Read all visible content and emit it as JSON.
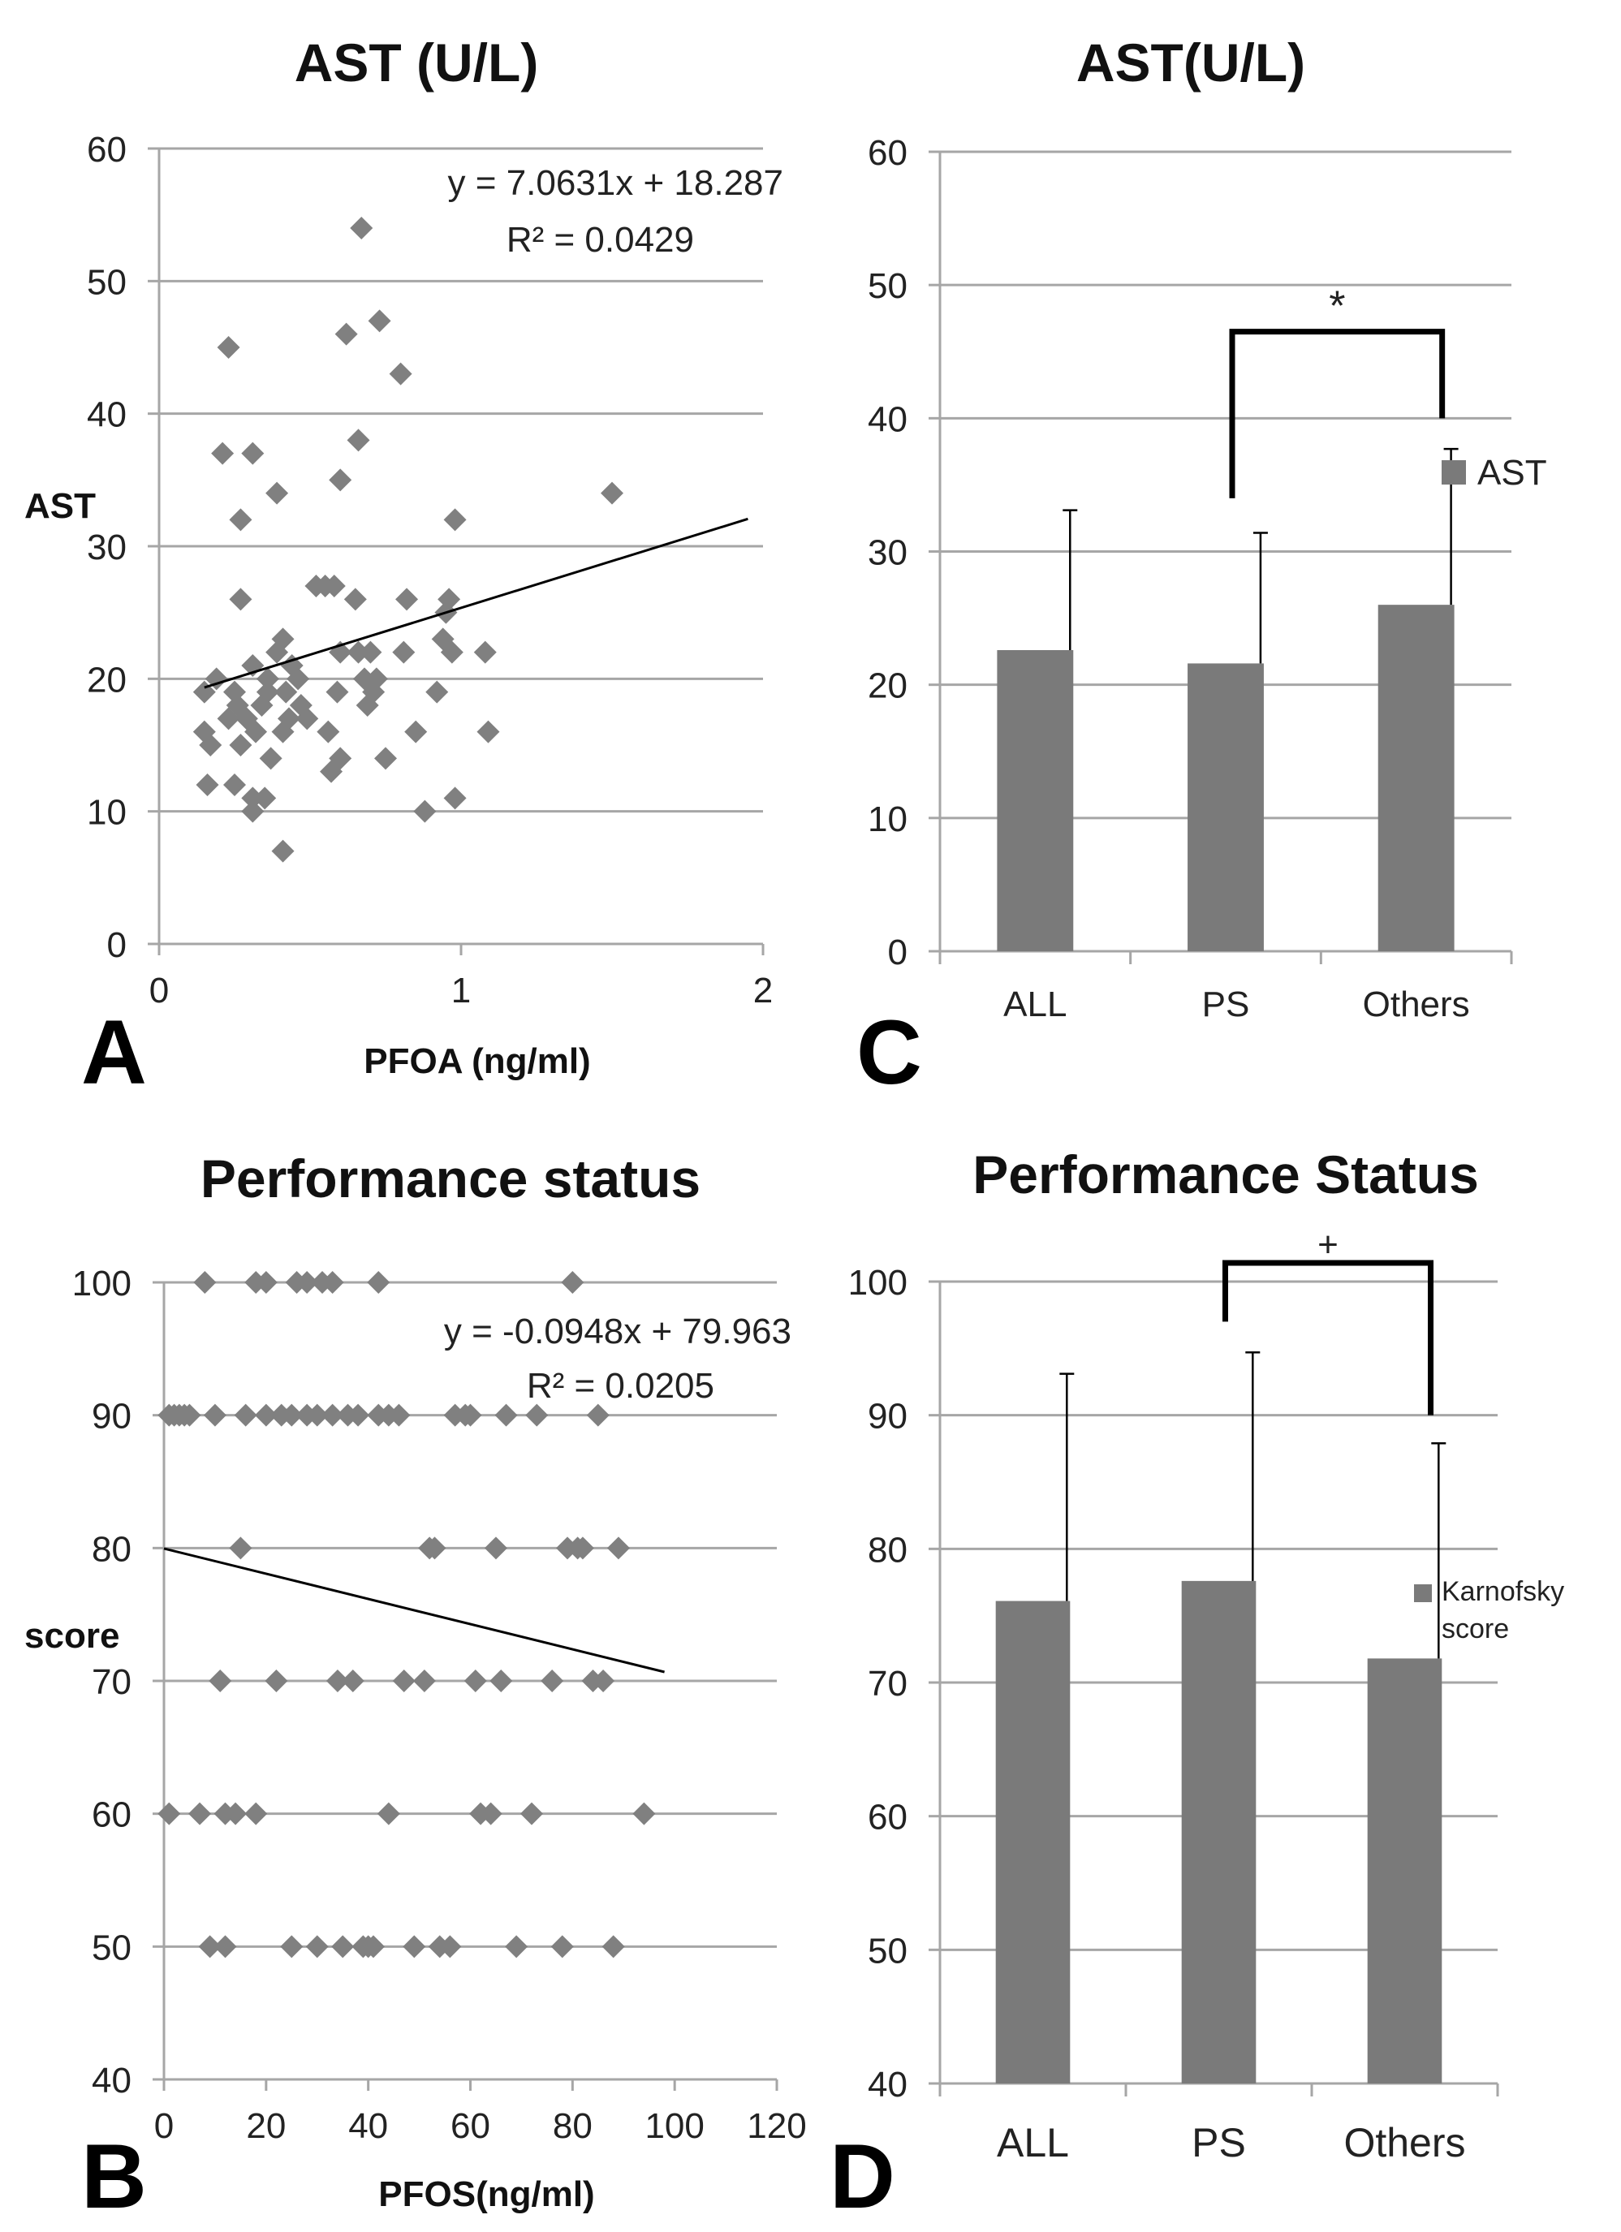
{
  "chart_data": [
    {
      "panel": "A",
      "type": "scatter",
      "title": "AST (U/L)",
      "xlabel": "PFOA (ng/ml)",
      "ylabel": "AST",
      "xlim": [
        0,
        2
      ],
      "ylim": [
        0,
        60
      ],
      "xticks": [
        "0",
        "1",
        "2"
      ],
      "yticks": [
        "0",
        "10",
        "20",
        "30",
        "40",
        "50",
        "60"
      ],
      "grid": "horizontal",
      "trendline": {
        "slope": 7.0631,
        "intercept": 18.287,
        "x_range": [
          0.15,
          1.95
        ]
      },
      "equation": "y = 7.0631x + 18.287",
      "r_squared": "R² = 0.0429",
      "points": [
        [
          0.23,
          45
        ],
        [
          0.21,
          37
        ],
        [
          0.31,
          37
        ],
        [
          0.27,
          32
        ],
        [
          0.39,
          34
        ],
        [
          0.67,
          54
        ],
        [
          0.73,
          47
        ],
        [
          0.62,
          46
        ],
        [
          0.8,
          43
        ],
        [
          0.66,
          38
        ],
        [
          0.6,
          35
        ],
        [
          0.98,
          32
        ],
        [
          1.5,
          34
        ],
        [
          0.27,
          26
        ],
        [
          0.52,
          27
        ],
        [
          0.55,
          27
        ],
        [
          0.58,
          27
        ],
        [
          0.65,
          26
        ],
        [
          0.82,
          26
        ],
        [
          0.96,
          26
        ],
        [
          0.95,
          25
        ],
        [
          0.41,
          23
        ],
        [
          0.39,
          22
        ],
        [
          0.6,
          22
        ],
        [
          0.66,
          22
        ],
        [
          0.7,
          22
        ],
        [
          0.81,
          22
        ],
        [
          0.94,
          23
        ],
        [
          0.97,
          22
        ],
        [
          1.08,
          22
        ],
        [
          0.31,
          21
        ],
        [
          0.36,
          20
        ],
        [
          0.44,
          21
        ],
        [
          0.46,
          20
        ],
        [
          0.19,
          20
        ],
        [
          0.25,
          19
        ],
        [
          0.36,
          19
        ],
        [
          0.42,
          19
        ],
        [
          0.47,
          18
        ],
        [
          0.68,
          20
        ],
        [
          0.72,
          20
        ],
        [
          0.15,
          19
        ],
        [
          0.26,
          18
        ],
        [
          0.29,
          17
        ],
        [
          0.34,
          18
        ],
        [
          0.43,
          17
        ],
        [
          0.49,
          17
        ],
        [
          0.59,
          19
        ],
        [
          0.69,
          18
        ],
        [
          0.71,
          19
        ],
        [
          0.92,
          19
        ],
        [
          0.23,
          17
        ],
        [
          0.32,
          16
        ],
        [
          0.41,
          16
        ],
        [
          0.15,
          16
        ],
        [
          0.17,
          15
        ],
        [
          0.27,
          15
        ],
        [
          0.37,
          14
        ],
        [
          0.56,
          16
        ],
        [
          0.6,
          14
        ],
        [
          0.75,
          14
        ],
        [
          0.85,
          16
        ],
        [
          1.09,
          16
        ],
        [
          0.57,
          13
        ],
        [
          0.16,
          12
        ],
        [
          0.25,
          12
        ],
        [
          0.31,
          11
        ],
        [
          0.35,
          11
        ],
        [
          0.31,
          10
        ],
        [
          0.88,
          10
        ],
        [
          0.98,
          11
        ],
        [
          0.41,
          7
        ]
      ]
    },
    {
      "panel": "C",
      "type": "bar",
      "title": "AST(U/L)",
      "categories": [
        "ALL",
        "PS",
        "Others"
      ],
      "series": [
        {
          "name": "AST",
          "values": [
            22.6,
            21.6,
            26.0
          ],
          "errors": [
            10.5,
            9.8,
            11.7
          ]
        }
      ],
      "ylim": [
        0,
        60
      ],
      "yticks": [
        "0",
        "10",
        "20",
        "30",
        "40",
        "50",
        "60"
      ],
      "grid": "horizontal",
      "legend": "right",
      "significance": {
        "between": [
          "PS",
          "Others"
        ],
        "label": "*",
        "left_level": 34,
        "right_level": 40,
        "top_level": 46.5
      }
    },
    {
      "panel": "B",
      "type": "scatter",
      "title": "Performance status",
      "xlabel": "PFOS(ng/ml)",
      "ylabel": "score",
      "xlim": [
        0,
        120
      ],
      "ylim": [
        40,
        100
      ],
      "xticks": [
        "0",
        "20",
        "40",
        "60",
        "80",
        "100",
        "120"
      ],
      "yticks": [
        "40",
        "50",
        "60",
        "70",
        "80",
        "90",
        "100"
      ],
      "grid": "horizontal",
      "trendline": {
        "slope": -0.0948,
        "intercept": 79.963,
        "x_range": [
          0,
          98
        ]
      },
      "equation": "y = -0.0948x + 79.963",
      "r_squared": "R² = 0.0205",
      "points": [
        [
          8,
          100
        ],
        [
          18,
          100
        ],
        [
          20,
          100
        ],
        [
          26,
          100
        ],
        [
          28,
          100
        ],
        [
          31,
          100
        ],
        [
          33,
          100
        ],
        [
          42,
          100
        ],
        [
          80,
          100
        ],
        [
          1,
          90
        ],
        [
          2,
          90
        ],
        [
          3,
          90
        ],
        [
          4,
          90
        ],
        [
          5,
          90
        ],
        [
          10,
          90
        ],
        [
          16,
          90
        ],
        [
          20,
          90
        ],
        [
          23,
          90
        ],
        [
          25,
          90
        ],
        [
          28,
          90
        ],
        [
          30,
          90
        ],
        [
          33,
          90
        ],
        [
          36,
          90
        ],
        [
          38,
          90
        ],
        [
          42,
          90
        ],
        [
          44,
          90
        ],
        [
          46,
          90
        ],
        [
          57,
          90
        ],
        [
          59,
          90
        ],
        [
          60,
          90
        ],
        [
          67,
          90
        ],
        [
          73,
          90
        ],
        [
          85,
          90
        ],
        [
          15,
          80
        ],
        [
          52,
          80
        ],
        [
          53,
          80
        ],
        [
          65,
          80
        ],
        [
          79,
          80
        ],
        [
          81,
          80
        ],
        [
          82,
          80
        ],
        [
          89,
          80
        ],
        [
          11,
          70
        ],
        [
          22,
          70
        ],
        [
          34,
          70
        ],
        [
          37,
          70
        ],
        [
          47,
          70
        ],
        [
          51,
          70
        ],
        [
          61,
          70
        ],
        [
          66,
          70
        ],
        [
          76,
          70
        ],
        [
          84,
          70
        ],
        [
          86,
          70
        ],
        [
          1,
          60
        ],
        [
          7,
          60
        ],
        [
          12,
          60
        ],
        [
          14,
          60
        ],
        [
          18,
          60
        ],
        [
          44,
          60
        ],
        [
          62,
          60
        ],
        [
          64,
          60
        ],
        [
          72,
          60
        ],
        [
          94,
          60
        ],
        [
          9,
          50
        ],
        [
          12,
          50
        ],
        [
          25,
          50
        ],
        [
          30,
          50
        ],
        [
          35,
          50
        ],
        [
          39,
          50
        ],
        [
          40,
          50
        ],
        [
          41,
          50
        ],
        [
          49,
          50
        ],
        [
          54,
          50
        ],
        [
          56,
          50
        ],
        [
          69,
          50
        ],
        [
          78,
          50
        ],
        [
          88,
          50
        ]
      ]
    },
    {
      "panel": "D",
      "type": "bar",
      "title": "Performance Status",
      "categories": [
        "ALL",
        "PS",
        "Others"
      ],
      "series": [
        {
          "name": "Karnofsky score",
          "values": [
            76.1,
            77.6,
            71.8
          ],
          "errors": [
            17.0,
            17.1,
            16.1
          ]
        }
      ],
      "ylim": [
        40,
        100
      ],
      "yticks": [
        "40",
        "50",
        "60",
        "70",
        "80",
        "90",
        "100"
      ],
      "grid": "horizontal",
      "legend": "right",
      "significance": {
        "between": [
          "PS",
          "Others"
        ],
        "label": "+",
        "left_level": 97,
        "right_level": 90,
        "top_level": 101.4
      }
    }
  ],
  "legend_lines": {
    "D": [
      "Karnofsky",
      "score"
    ]
  },
  "colors": {
    "marker": "#808080",
    "bar": "#7a7a7a",
    "grid": "#a6a6a6",
    "axis": "#a6a6a6",
    "line": "#000000"
  }
}
